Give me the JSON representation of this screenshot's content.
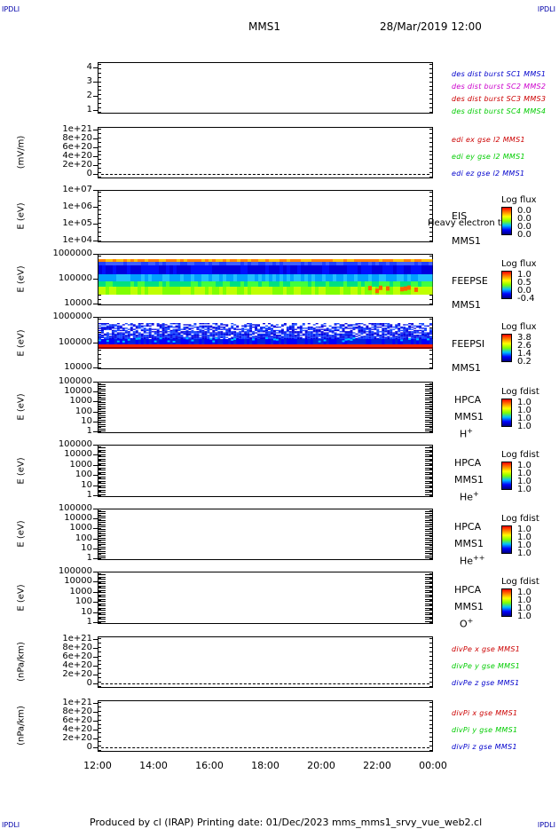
{
  "corners": {
    "top_left": "IPDLI",
    "top_right": "IPDLI",
    "bottom_left": "IPDLI",
    "bottom_right": "IPDLI"
  },
  "header": {
    "title": "MMS1",
    "date": "28/Mar/2019 12:00"
  },
  "footer": {
    "text": "Produced by cl (IRAP)   Printing date: 01/Dec/2023   mms_mms1_srvy_vue_web2.cl"
  },
  "x_ticks": [
    "12:00",
    "14:00",
    "16:00",
    "18:00",
    "20:00",
    "22:00",
    "00:00"
  ],
  "panels": [
    {
      "id": "dist",
      "ylabel": "",
      "yticks": [
        "4",
        "3",
        "2",
        "1"
      ],
      "legend": [
        {
          "text": "des dist burst SC1 MMS1",
          "color": "#0000cc"
        },
        {
          "text": "des dist burst SC2 MMS2",
          "color": "#cc00cc"
        },
        {
          "text": "des dist burst SC3 MMS3",
          "color": "#cc0000"
        },
        {
          "text": "des dist burst SC4 MMS4",
          "color": "#00cc00"
        }
      ]
    },
    {
      "id": "edi",
      "ylabel": "(mV/m)",
      "yticks": [
        "1e+21",
        "8e+20",
        "6e+20",
        "4e+20",
        "2e+20",
        "0"
      ],
      "legend": [
        {
          "text": "edi ex gse l2 MMS1",
          "color": "#cc0000"
        },
        {
          "text": "edi ey gse l2 MMS1",
          "color": "#00cc00"
        },
        {
          "text": "edi ez gse l2 MMS1",
          "color": "#0000cc"
        }
      ]
    },
    {
      "id": "eis",
      "ylabel": "E (eV)",
      "yticks": [
        "1e+07",
        "1e+06",
        "1e+05",
        "1e+04"
      ],
      "side": [
        "EIS",
        "MMS1"
      ],
      "overlay": "Heavy electron to",
      "cbar": {
        "title": "Log flux",
        "values": [
          "0.0",
          "0.0",
          "0.0",
          "0.0"
        ]
      }
    },
    {
      "id": "feepse",
      "ylabel": "E (eV)",
      "yticks": [
        "1000000",
        "100000",
        "10000"
      ],
      "side": [
        "FEEPSE",
        "MMS1"
      ],
      "cbar": {
        "title": "Log flux",
        "values": [
          "1.0",
          "0.5",
          "0.0",
          "-0.4"
        ]
      }
    },
    {
      "id": "feepsi",
      "ylabel": "E (eV)",
      "yticks": [
        "1000000",
        "100000",
        "10000"
      ],
      "side": [
        "FEEPSI",
        "MMS1"
      ],
      "cbar": {
        "title": "Log flux",
        "values": [
          "3.8",
          "2.6",
          "1.4",
          "0.2"
        ]
      }
    },
    {
      "id": "hpca_h",
      "ylabel": "E (eV)",
      "yticks": [
        "100000",
        "10000",
        "1000",
        "100",
        "10",
        "1"
      ],
      "side": [
        "HPCA",
        "MMS1"
      ],
      "species": "H",
      "species_sup": "+",
      "cbar": {
        "title": "Log fdist",
        "values": [
          "1.0",
          "1.0",
          "1.0",
          "1.0"
        ]
      }
    },
    {
      "id": "hpca_he",
      "ylabel": "E (eV)",
      "yticks": [
        "100000",
        "10000",
        "1000",
        "100",
        "10",
        "1"
      ],
      "side": [
        "HPCA",
        "MMS1"
      ],
      "species": "He",
      "species_sup": "+",
      "cbar": {
        "title": "Log fdist",
        "values": [
          "1.0",
          "1.0",
          "1.0",
          "1.0"
        ]
      }
    },
    {
      "id": "hpca_he2",
      "ylabel": "E (eV)",
      "yticks": [
        "100000",
        "10000",
        "1000",
        "100",
        "10",
        "1"
      ],
      "side": [
        "HPCA",
        "MMS1"
      ],
      "species": "He",
      "species_sup": "++",
      "cbar": {
        "title": "Log fdist",
        "values": [
          "1.0",
          "1.0",
          "1.0",
          "1.0"
        ]
      }
    },
    {
      "id": "hpca_o",
      "ylabel": "E (eV)",
      "yticks": [
        "100000",
        "10000",
        "1000",
        "100",
        "10",
        "1"
      ],
      "side": [
        "HPCA",
        "MMS1"
      ],
      "species": "O",
      "species_sup": "+",
      "cbar": {
        "title": "Log fdist",
        "values": [
          "1.0",
          "1.0",
          "1.0",
          "1.0"
        ]
      }
    },
    {
      "id": "divpe",
      "ylabel": "(nPa/km)",
      "yticks": [
        "1e+21",
        "8e+20",
        "6e+20",
        "4e+20",
        "2e+20",
        "0"
      ],
      "legend": [
        {
          "text": "divPe x gse MMS1",
          "color": "#cc0000"
        },
        {
          "text": "divPe y gse MMS1",
          "color": "#00cc00"
        },
        {
          "text": "divPe z gse MMS1",
          "color": "#0000cc"
        }
      ]
    },
    {
      "id": "divpi",
      "ylabel": "(nPa/km)",
      "yticks": [
        "1e+21",
        "8e+20",
        "6e+20",
        "4e+20",
        "2e+20",
        "0"
      ],
      "legend": [
        {
          "text": "divPi x gse MMS1",
          "color": "#cc0000"
        },
        {
          "text": "divPi y gse MMS1",
          "color": "#00cc00"
        },
        {
          "text": "divPi z gse MMS1",
          "color": "#0000cc"
        }
      ]
    }
  ],
  "chart_data": {
    "type": "heatmap",
    "x": [
      "12:00",
      "14:00",
      "16:00",
      "18:00",
      "20:00",
      "22:00",
      "00:00"
    ],
    "xlim": [
      "12:00",
      "00:00"
    ],
    "spectrograms": [
      {
        "name": "FEEPSE",
        "ylim": [
          10000,
          1000000
        ],
        "yscale": "log",
        "cbar": "Log flux",
        "crange": [
          -0.4,
          1.0
        ]
      },
      {
        "name": "FEEPSI",
        "ylim": [
          10000,
          1000000
        ],
        "yscale": "log",
        "cbar": "Log flux",
        "crange": [
          0.2,
          3.8
        ]
      }
    ],
    "line_panels": [
      {
        "ylabel": "(mV/m)",
        "ylim": [
          0,
          1e+21
        ],
        "values": "zero"
      },
      {
        "ylabel": "(nPa/km)",
        "ylim": [
          0,
          1e+21
        ],
        "values": "zero"
      },
      {
        "ylabel": "(nPa/km)",
        "ylim": [
          0,
          1e+21
        ],
        "values": "zero"
      }
    ]
  }
}
